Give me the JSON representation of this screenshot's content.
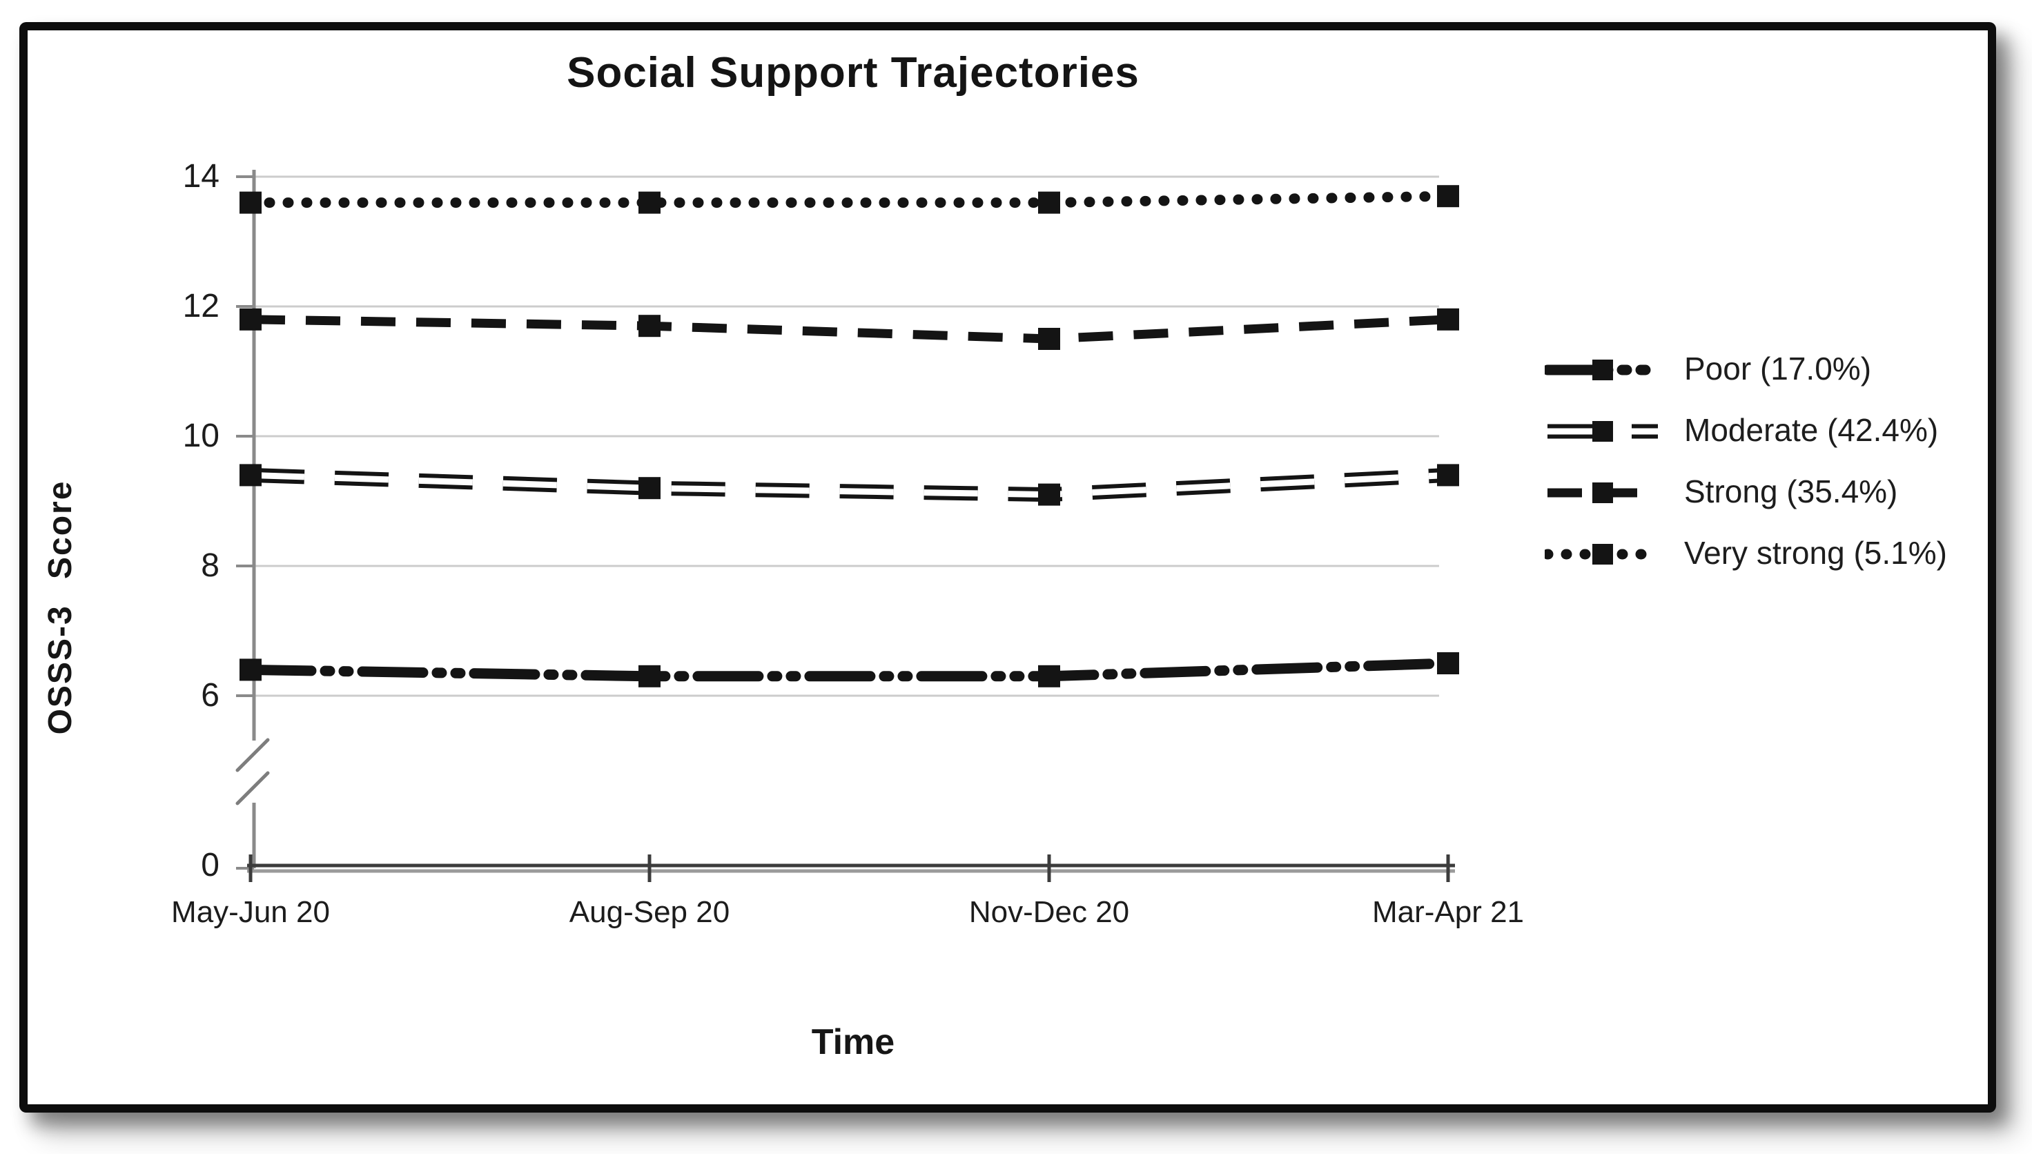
{
  "window": {
    "background": "#ffffff",
    "frame_border_color": "#0d0d0d"
  },
  "chart_data": {
    "type": "line",
    "title": "Social Support Trajectories",
    "xlabel": "Time",
    "ylabel": "OSSS-3 Score",
    "categories": [
      "May-Jun 20",
      "Aug-Sep 20",
      "Nov-Dec 20",
      "Mar-Apr 21"
    ],
    "y_ticks": [
      "14",
      "12",
      "10",
      "8",
      "6",
      "0"
    ],
    "y_tick_values": [
      14,
      12,
      10,
      8,
      6,
      0
    ],
    "ylim": [
      0,
      14
    ],
    "axis_break_between": [
      0,
      6
    ],
    "grid": "horizontal",
    "legend_position": "right",
    "line_color": "#141414",
    "grid_color": "#cccccc",
    "axis_color": "#8a8a8a",
    "x_axis_color": "#4a4a4a",
    "series": [
      {
        "name": "Poor (17.0%)",
        "style": "dash-dot-dot",
        "marker": "square",
        "values": [
          6.4,
          6.3,
          6.3,
          6.5
        ]
      },
      {
        "name": "Moderate (42.4%)",
        "style": "hollow-dash",
        "marker": "square",
        "values": [
          9.4,
          9.2,
          9.1,
          9.4
        ]
      },
      {
        "name": "Strong (35.4%)",
        "style": "dash",
        "marker": "square",
        "values": [
          11.8,
          11.7,
          11.5,
          11.8
        ]
      },
      {
        "name": "Very strong (5.1%)",
        "style": "dot",
        "marker": "square",
        "values": [
          13.6,
          13.6,
          13.6,
          13.7
        ]
      }
    ]
  }
}
